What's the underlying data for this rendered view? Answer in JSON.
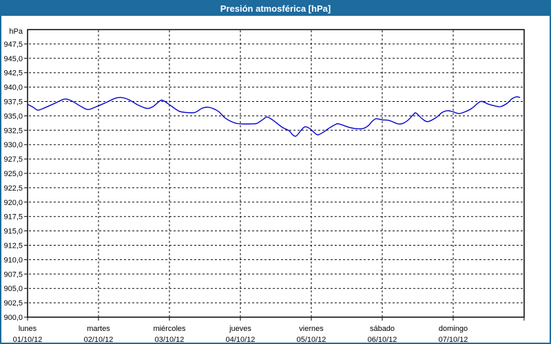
{
  "window": {
    "title": "Presión atmosférica [hPa]",
    "titlebar_color": "#1e6b9e",
    "border_color": "#1e6b9e",
    "background_color": "#ffffff"
  },
  "chart_data": {
    "type": "line",
    "title": "Presión atmosférica [hPa]",
    "ylabel": "hPa",
    "xlabel": "",
    "ylim": [
      900,
      950
    ],
    "ytick_step": 2.5,
    "ytick_labels": [
      "947,5",
      "945,0",
      "942,5",
      "940,0",
      "937,5",
      "935,0",
      "932,5",
      "930,0",
      "927,5",
      "925,0",
      "922,5",
      "920,0",
      "917,5",
      "915,0",
      "912,5",
      "910,0",
      "907,5",
      "905,0",
      "902,5",
      "900,0"
    ],
    "grid": "dashed",
    "legend_position": "none",
    "line_color": "#0000cc",
    "grid_color": "#000000",
    "axis_color": "#000000",
    "x_days": [
      {
        "name": "lunes",
        "date": "01/10/12"
      },
      {
        "name": "martes",
        "date": "02/10/12"
      },
      {
        "name": "miércoles",
        "date": "03/10/12"
      },
      {
        "name": "jueves",
        "date": "04/10/12"
      },
      {
        "name": "viernes",
        "date": "05/10/12"
      },
      {
        "name": "sábado",
        "date": "06/10/12"
      },
      {
        "name": "domingo",
        "date": "07/10/12"
      }
    ],
    "x_total_hours": 168,
    "series": [
      {
        "name": "Presión atmosférica",
        "unit": "hPa",
        "points_t_hours_value_hpa": [
          [
            0,
            937.0
          ],
          [
            1.9,
            936.5
          ],
          [
            3.5,
            936.0
          ],
          [
            5.8,
            936.4
          ],
          [
            9.3,
            937.2
          ],
          [
            12.3,
            937.9
          ],
          [
            14,
            937.8
          ],
          [
            15.6,
            937.4
          ],
          [
            18.2,
            936.6
          ],
          [
            20.5,
            936.1
          ],
          [
            23.3,
            936.6
          ],
          [
            25.6,
            937.1
          ],
          [
            27.3,
            937.5
          ],
          [
            29.4,
            938.0
          ],
          [
            31.5,
            938.2
          ],
          [
            34.3,
            937.8
          ],
          [
            37.3,
            936.9
          ],
          [
            40.3,
            936.3
          ],
          [
            42.4,
            936.6
          ],
          [
            44.3,
            937.4
          ],
          [
            45.7,
            937.7
          ],
          [
            48.9,
            936.6
          ],
          [
            51.3,
            935.8
          ],
          [
            53.6,
            935.6
          ],
          [
            56.6,
            935.6
          ],
          [
            59,
            936.3
          ],
          [
            61.3,
            936.5
          ],
          [
            64.5,
            935.8
          ],
          [
            66.9,
            934.6
          ],
          [
            69.9,
            933.8
          ],
          [
            72.2,
            933.6
          ],
          [
            75.7,
            933.6
          ],
          [
            77.6,
            933.7
          ],
          [
            79.7,
            934.4
          ],
          [
            80.9,
            934.8
          ],
          [
            82.3,
            934.5
          ],
          [
            83.9,
            933.9
          ],
          [
            86.2,
            933.0
          ],
          [
            88.5,
            932.4
          ],
          [
            89.7,
            931.7
          ],
          [
            90.9,
            931.5
          ],
          [
            92.7,
            932.6
          ],
          [
            93.9,
            933.1
          ],
          [
            95.5,
            932.8
          ],
          [
            97.2,
            932.0
          ],
          [
            98.3,
            931.7
          ],
          [
            100.2,
            932.2
          ],
          [
            101.8,
            932.8
          ],
          [
            104.2,
            933.5
          ],
          [
            105.3,
            933.6
          ],
          [
            108.8,
            933.0
          ],
          [
            110.7,
            932.8
          ],
          [
            113.5,
            932.8
          ],
          [
            115.3,
            933.3
          ],
          [
            116.5,
            934.0
          ],
          [
            117.9,
            934.5
          ],
          [
            120,
            934.3
          ],
          [
            122.3,
            934.2
          ],
          [
            125.4,
            933.6
          ],
          [
            127,
            933.7
          ],
          [
            128.6,
            934.2
          ],
          [
            130.5,
            935.2
          ],
          [
            131.4,
            935.5
          ],
          [
            133.5,
            934.5
          ],
          [
            135.4,
            934.0
          ],
          [
            138.2,
            934.7
          ],
          [
            140.3,
            935.6
          ],
          [
            142.1,
            935.9
          ],
          [
            144,
            935.7
          ],
          [
            145.9,
            935.4
          ],
          [
            148,
            935.7
          ],
          [
            150.3,
            936.3
          ],
          [
            152.6,
            937.3
          ],
          [
            153.8,
            937.5
          ],
          [
            156.1,
            937.0
          ],
          [
            158.4,
            936.7
          ],
          [
            160,
            936.6
          ],
          [
            162.3,
            937.2
          ],
          [
            163.7,
            937.9
          ],
          [
            165.3,
            938.3
          ],
          [
            166.5,
            938.2
          ]
        ]
      }
    ]
  }
}
